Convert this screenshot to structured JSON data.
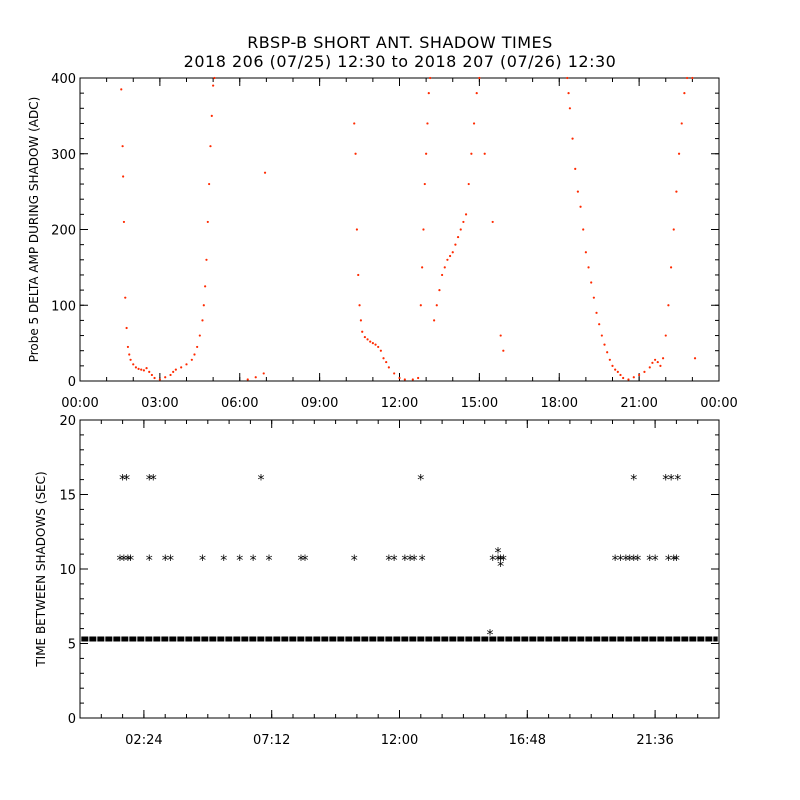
{
  "title": "RBSP-B SHORT ANT. SHADOW TIMES",
  "subtitle": "2018 206 (07/25) 12:30 to 2018 207 (07/26) 12:30",
  "colors": {
    "top_points": "#ff2a00",
    "bottom_points": "#000000",
    "frame": "#000000"
  },
  "chart_data": [
    {
      "type": "scatter",
      "ylabel": "Probe 5 DELTA AMP DURING SHADOW (ADC)",
      "xlabel": "",
      "x_unit": "hours",
      "xlim": [
        0,
        24
      ],
      "ylim": [
        0,
        400
      ],
      "x_ticks": [
        0,
        3,
        6,
        9,
        12,
        15,
        18,
        21,
        24
      ],
      "x_tick_labels": [
        "00:00",
        "03:00",
        "06:00",
        "09:00",
        "12:00",
        "15:00",
        "18:00",
        "21:00",
        "00:00"
      ],
      "y_ticks": [
        0,
        100,
        200,
        300,
        400
      ],
      "y_tick_labels": [
        "0",
        "100",
        "200",
        "300",
        "400"
      ],
      "series": [
        {
          "color": "#ff2a00",
          "points": [
            [
              1.55,
              385
            ],
            [
              1.6,
              310
            ],
            [
              1.62,
              270
            ],
            [
              1.65,
              210
            ],
            [
              1.7,
              110
            ],
            [
              1.75,
              70
            ],
            [
              1.8,
              45
            ],
            [
              1.85,
              35
            ],
            [
              1.9,
              28
            ],
            [
              2.0,
              22
            ],
            [
              2.1,
              18
            ],
            [
              2.2,
              16
            ],
            [
              2.3,
              15
            ],
            [
              2.4,
              14
            ],
            [
              2.5,
              17
            ],
            [
              2.6,
              12
            ],
            [
              2.7,
              8
            ],
            [
              2.8,
              4
            ],
            [
              3.0,
              2
            ],
            [
              3.2,
              5
            ],
            [
              3.4,
              8
            ],
            [
              3.5,
              12
            ],
            [
              3.6,
              15
            ],
            [
              3.8,
              18
            ],
            [
              4.0,
              22
            ],
            [
              4.2,
              28
            ],
            [
              4.3,
              35
            ],
            [
              4.4,
              45
            ],
            [
              4.5,
              60
            ],
            [
              4.6,
              80
            ],
            [
              4.65,
              100
            ],
            [
              4.7,
              125
            ],
            [
              4.75,
              160
            ],
            [
              4.8,
              210
            ],
            [
              4.85,
              260
            ],
            [
              4.9,
              310
            ],
            [
              4.95,
              350
            ],
            [
              5.0,
              390
            ],
            [
              5.05,
              400
            ],
            [
              6.3,
              2
            ],
            [
              6.6,
              5
            ],
            [
              6.9,
              10
            ],
            [
              6.95,
              275
            ],
            [
              10.3,
              340
            ],
            [
              10.35,
              300
            ],
            [
              10.4,
              200
            ],
            [
              10.45,
              140
            ],
            [
              10.5,
              100
            ],
            [
              10.55,
              80
            ],
            [
              10.6,
              65
            ],
            [
              10.7,
              58
            ],
            [
              10.8,
              55
            ],
            [
              10.9,
              52
            ],
            [
              11.0,
              50
            ],
            [
              11.1,
              48
            ],
            [
              11.2,
              45
            ],
            [
              11.3,
              40
            ],
            [
              11.4,
              30
            ],
            [
              11.5,
              25
            ],
            [
              11.6,
              18
            ],
            [
              11.8,
              10
            ],
            [
              12.0,
              4
            ],
            [
              12.2,
              2
            ],
            [
              12.5,
              2
            ],
            [
              12.7,
              4
            ],
            [
              12.8,
              100
            ],
            [
              12.85,
              150
            ],
            [
              12.9,
              200
            ],
            [
              12.95,
              260
            ],
            [
              13.0,
              300
            ],
            [
              13.05,
              340
            ],
            [
              13.1,
              380
            ],
            [
              13.15,
              400
            ],
            [
              13.3,
              80
            ],
            [
              13.4,
              100
            ],
            [
              13.5,
              120
            ],
            [
              13.6,
              140
            ],
            [
              13.7,
              150
            ],
            [
              13.8,
              160
            ],
            [
              13.9,
              165
            ],
            [
              14.0,
              170
            ],
            [
              14.1,
              180
            ],
            [
              14.2,
              190
            ],
            [
              14.3,
              200
            ],
            [
              14.4,
              210
            ],
            [
              14.5,
              220
            ],
            [
              14.6,
              260
            ],
            [
              14.7,
              300
            ],
            [
              14.8,
              340
            ],
            [
              14.9,
              380
            ],
            [
              15.0,
              400
            ],
            [
              15.2,
              300
            ],
            [
              15.5,
              210
            ],
            [
              15.8,
              60
            ],
            [
              15.9,
              40
            ],
            [
              18.3,
              400
            ],
            [
              18.35,
              380
            ],
            [
              18.4,
              360
            ],
            [
              18.5,
              320
            ],
            [
              18.6,
              280
            ],
            [
              18.7,
              250
            ],
            [
              18.8,
              230
            ],
            [
              18.9,
              200
            ],
            [
              19.0,
              170
            ],
            [
              19.1,
              150
            ],
            [
              19.2,
              130
            ],
            [
              19.3,
              110
            ],
            [
              19.4,
              90
            ],
            [
              19.5,
              75
            ],
            [
              19.6,
              60
            ],
            [
              19.7,
              48
            ],
            [
              19.8,
              38
            ],
            [
              19.9,
              28
            ],
            [
              20.0,
              20
            ],
            [
              20.1,
              15
            ],
            [
              20.2,
              12
            ],
            [
              20.3,
              8
            ],
            [
              20.4,
              4
            ],
            [
              20.6,
              2
            ],
            [
              20.8,
              5
            ],
            [
              21.0,
              8
            ],
            [
              21.2,
              12
            ],
            [
              21.4,
              18
            ],
            [
              21.5,
              24
            ],
            [
              21.6,
              28
            ],
            [
              21.7,
              25
            ],
            [
              21.8,
              20
            ],
            [
              21.9,
              30
            ],
            [
              22.0,
              60
            ],
            [
              22.1,
              100
            ],
            [
              22.2,
              150
            ],
            [
              22.3,
              200
            ],
            [
              22.4,
              250
            ],
            [
              22.5,
              300
            ],
            [
              22.6,
              340
            ],
            [
              22.7,
              380
            ],
            [
              22.8,
              400
            ],
            [
              23.0,
              400
            ],
            [
              23.1,
              30
            ]
          ]
        }
      ]
    },
    {
      "type": "scatter",
      "ylabel": "TIME BETWEEN SHADOWS (SEC)",
      "xlabel": "",
      "x_unit": "hours",
      "xlim": [
        0,
        24
      ],
      "ylim": [
        0,
        20
      ],
      "x_ticks": [
        2.4,
        7.2,
        12.0,
        16.8,
        21.6
      ],
      "x_tick_labels": [
        "02:24",
        "07:12",
        "12:00",
        "16:48",
        "21:36"
      ],
      "y_ticks": [
        0,
        5,
        10,
        15,
        20
      ],
      "y_tick_labels": [
        "0",
        "5",
        "10",
        "15",
        "20"
      ],
      "series": [
        {
          "color": "#000000",
          "marker": "asterisk",
          "baseline_value": 5.3,
          "baseline_x_range": [
            0.05,
            23.95
          ],
          "points": [
            [
              1.6,
              16
            ],
            [
              1.75,
              16
            ],
            [
              2.6,
              16
            ],
            [
              2.75,
              16
            ],
            [
              6.8,
              16
            ],
            [
              12.8,
              16
            ],
            [
              20.8,
              16
            ],
            [
              22.0,
              16
            ],
            [
              22.2,
              16
            ],
            [
              22.45,
              16
            ],
            [
              1.5,
              10.6
            ],
            [
              1.65,
              10.6
            ],
            [
              1.8,
              10.6
            ],
            [
              1.9,
              10.6
            ],
            [
              2.6,
              10.6
            ],
            [
              3.2,
              10.6
            ],
            [
              3.4,
              10.6
            ],
            [
              4.6,
              10.6
            ],
            [
              5.4,
              10.6
            ],
            [
              6.0,
              10.6
            ],
            [
              6.5,
              10.6
            ],
            [
              7.1,
              10.6
            ],
            [
              8.3,
              10.6
            ],
            [
              8.45,
              10.6
            ],
            [
              10.3,
              10.6
            ],
            [
              11.6,
              10.6
            ],
            [
              11.8,
              10.6
            ],
            [
              12.2,
              10.6
            ],
            [
              12.4,
              10.6
            ],
            [
              12.55,
              10.6
            ],
            [
              12.85,
              10.6
            ],
            [
              15.5,
              10.6
            ],
            [
              15.7,
              10.6
            ],
            [
              15.8,
              10.6
            ],
            [
              15.9,
              10.6
            ],
            [
              20.1,
              10.6
            ],
            [
              20.3,
              10.6
            ],
            [
              20.5,
              10.6
            ],
            [
              20.65,
              10.6
            ],
            [
              20.8,
              10.6
            ],
            [
              20.95,
              10.6
            ],
            [
              21.4,
              10.6
            ],
            [
              21.6,
              10.6
            ],
            [
              22.1,
              10.6
            ],
            [
              22.3,
              10.6
            ],
            [
              22.4,
              10.6
            ],
            [
              15.7,
              11.1
            ],
            [
              15.8,
              10.2
            ],
            [
              15.4,
              5.6
            ]
          ]
        }
      ]
    }
  ]
}
